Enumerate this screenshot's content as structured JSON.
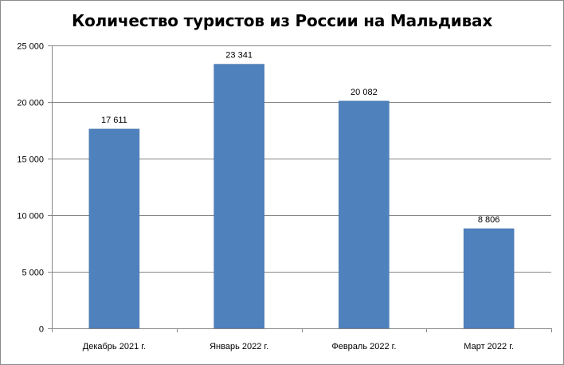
{
  "colors": {
    "bar": "#4f81bd",
    "bar_edge": "#3f6fa7",
    "grid": "#868686",
    "axis": "#868686",
    "frame": "#8c8c8c"
  },
  "chart_data": {
    "type": "bar",
    "title": "Количество туристов из России на Мальдивах",
    "xlabel": "",
    "ylabel": "",
    "categories": [
      "Декабрь 2021 г.",
      "Январь 2022 г.",
      "Февраль 2022 г.",
      "Март 2022 г."
    ],
    "values": [
      17611,
      23341,
      20082,
      8806
    ],
    "data_labels": [
      "17 611",
      "23 341",
      "20 082",
      "8 806"
    ],
    "ylim": [
      0,
      25000
    ],
    "y_ticks": [
      0,
      5000,
      10000,
      15000,
      20000,
      25000
    ],
    "y_tick_labels": [
      "0",
      "5 000",
      "10 000",
      "15 000",
      "20 000",
      "25 000"
    ],
    "grid": true,
    "legend": "none"
  }
}
